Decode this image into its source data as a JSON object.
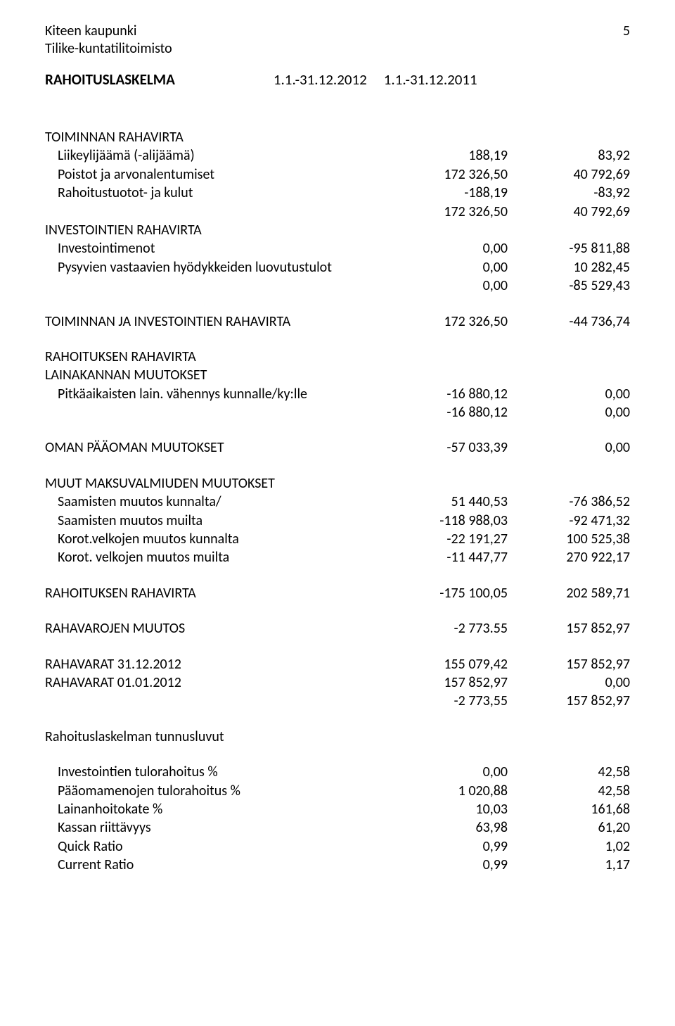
{
  "header": {
    "org_line1": "Kiteen kaupunki",
    "org_line2": "Tilike-kuntatilitoimisto",
    "page_number": "5",
    "title": "RAHOITUSLASKELMA",
    "period1": "1.1.-31.12.2012",
    "period2": "1.1.-31.12.2011"
  },
  "sections": {
    "toiminnan_title": "TOIMINNAN RAHAVIRTA",
    "liikeylijaama_label": "Liikeylijäämä (-alijäämä)",
    "liikeylijaama_v1": "188,19",
    "liikeylijaama_v2": "83,92",
    "poistot_label": "Poistot ja arvonalentumiset",
    "poistot_v1": "172 326,50",
    "poistot_v2": "40 792,69",
    "rahtuotot_label": "Rahoitustuotot- ja kulut",
    "rahtuotot_v1": "-188,19",
    "rahtuotot_v2": "-83,92",
    "toiminnan_sum_v1": "172 326,50",
    "toiminnan_sum_v2": "40 792,69",
    "invest_title": "INVESTOINTIEN RAHAVIRTA",
    "investmenot_label": "Investointimenot",
    "investmenot_v1": "0,00",
    "investmenot_v2": "-95 811,88",
    "pysyvien_label": "Pysyvien vastaavien hyödykkeiden luovutustulot",
    "pysyvien_v1": "0,00",
    "pysyvien_v2": "10 282,45",
    "invest_sum_v1": "0,00",
    "invest_sum_v2": "-85 529,43",
    "toim_ja_inv_label": "TOIMINNAN JA INVESTOINTIEN RAHAVIRTA",
    "toim_ja_inv_v1": "172 326,50",
    "toim_ja_inv_v2": "-44 736,74",
    "rahoituksen_title": "RAHOITUKSEN RAHAVIRTA",
    "lainakannan_title": "LAINAKANNAN MUUTOKSET",
    "pitkavah_label": "Pitkäaikaisten lain. vähennys kunnalle/ky:lle",
    "pitkavah_v1": "-16 880,12",
    "pitkavah_v2": "0,00",
    "lainakannan_sum_v1": "-16 880,12",
    "lainakannan_sum_v2": "0,00",
    "oman_paaoman_label": "OMAN PÄÄOMAN MUUTOKSET",
    "oman_paaoman_v1": "-57 033,39",
    "oman_paaoman_v2": "0,00",
    "muut_maksu_title": "MUUT MAKSUVALMIUDEN MUUTOKSET",
    "saam_kunnalta_label": "Saamisten muutos kunnalta/",
    "saam_kunnalta_v1": "51 440,53",
    "saam_kunnalta_v2": "-76 386,52",
    "saam_muilta_label": "Saamisten muutos muilta",
    "saam_muilta_v1": "-118 988,03",
    "saam_muilta_v2": "-92 471,32",
    "korot_kunnalta_label": "Korot.velkojen muutos kunnalta",
    "korot_kunnalta_v1": "-22 191,27",
    "korot_kunnalta_v2": "100 525,38",
    "korot_muilta_label": "Korot. velkojen muutos muilta",
    "korot_muilta_v1": "-11 447,77",
    "korot_muilta_v2": "270 922,17",
    "rahoituksen_rv_label": "RAHOITUKSEN RAHAVIRTA",
    "rahoituksen_rv_v1": "-175 100,05",
    "rahoituksen_rv_v2": "202 589,71",
    "rahavarojen_label": "RAHAVAROJEN MUUTOS",
    "rahavarojen_v1": "-2 773.55",
    "rahavarojen_v2": "157 852,97",
    "rahavarat_3112_label": "RAHAVARAT 31.12.2012",
    "rahavarat_3112_v1": "155 079,42",
    "rahavarat_3112_v2": "157 852,97",
    "rahavarat_0101_label": "RAHAVARAT 01.01.2012",
    "rahavarat_0101_v1": "157 852,97",
    "rahavarat_0101_v2": "0,00",
    "rahavarat_diff_v1": "-2 773,55",
    "rahavarat_diff_v2": "157 852,97",
    "tunnusluvut_title": "Rahoituslaskelman tunnusluvut",
    "inv_tulorahoitus_label": "Investointien tulorahoitus %",
    "inv_tulorahoitus_v1": "0,00",
    "inv_tulorahoitus_v2": "42,58",
    "paaoma_tulorahoitus_label": "Pääomamenojen tulorahoitus %",
    "paaoma_tulorahoitus_v1": "1 020,88",
    "paaoma_tulorahoitus_v2": "42,58",
    "lainanhoitokate_label": "Lainanhoitokate %",
    "lainanhoitokate_v1": "10,03",
    "lainanhoitokate_v2": "161,68",
    "kassan_riittavyys_label": "Kassan riittävyys",
    "kassan_riittavyys_v1": "63,98",
    "kassan_riittavyys_v2": "61,20",
    "quick_ratio_label": "Quick Ratio",
    "quick_ratio_v1": "0,99",
    "quick_ratio_v2": "1,02",
    "current_ratio_label": "Current Ratio",
    "current_ratio_v1": "0,99",
    "current_ratio_v2": "1,17"
  }
}
